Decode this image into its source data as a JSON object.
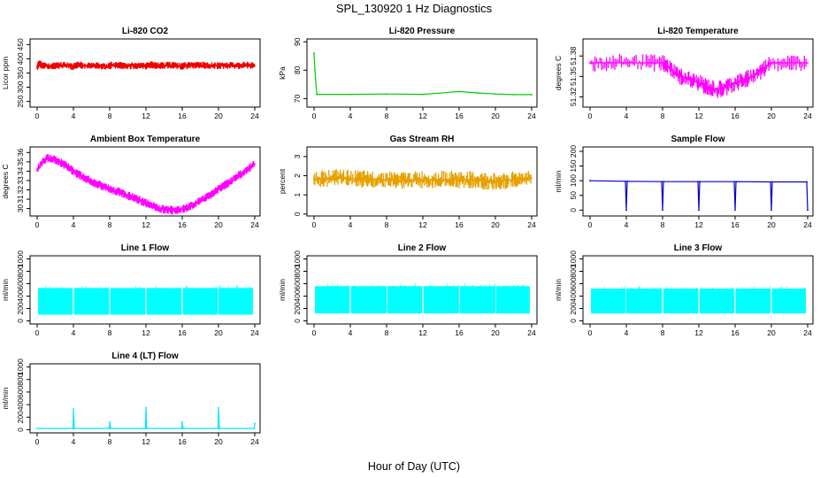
{
  "figure": {
    "title": "SPL_130920  1 Hz Diagnostics",
    "xlabel": "Hour of Day (UTC)"
  },
  "chart_data": [
    {
      "type": "line",
      "title": "Li-820 CO2",
      "ylabel": "Licor ppm",
      "color": "#ee0000",
      "xlim": [
        0,
        24
      ],
      "xticks": [
        0,
        4,
        8,
        12,
        16,
        20,
        24
      ],
      "ylim": [
        230,
        470
      ],
      "yticks": [
        250,
        300,
        350,
        400,
        450
      ],
      "series": [
        {
          "x": [
            0,
            0.2,
            0.5,
            1,
            2,
            3,
            4,
            4.5,
            5,
            6,
            7,
            8,
            8.2,
            9,
            10,
            11,
            12,
            12.5,
            13,
            14,
            15,
            16,
            16.2,
            17,
            18,
            19,
            20,
            21,
            22,
            23,
            24
          ],
          "y": [
            370,
            385,
            378,
            375,
            376,
            378,
            372,
            380,
            377,
            376,
            375,
            374,
            378,
            377,
            375,
            376,
            374,
            380,
            376,
            377,
            378,
            372,
            376,
            377,
            378,
            376,
            375,
            377,
            376,
            378,
            375
          ]
        }
      ]
    },
    {
      "type": "line",
      "title": "Li-820 Pressure",
      "ylabel": "kPa",
      "color": "#00cc00",
      "xlim": [
        0,
        24
      ],
      "xticks": [
        0,
        4,
        8,
        12,
        16,
        20,
        24
      ],
      "ylim": [
        67,
        91
      ],
      "yticks": [
        70,
        80,
        90
      ],
      "series": [
        {
          "x": [
            0,
            0.1,
            0.3,
            4,
            8,
            12,
            16,
            18,
            20,
            22,
            24
          ],
          "y": [
            86,
            80,
            71.5,
            71.5,
            71.6,
            71.5,
            72.5,
            72.0,
            71.6,
            71.4,
            71.4
          ]
        }
      ]
    },
    {
      "type": "line",
      "title": "Li-820 Temperature",
      "ylabel": "degrees C",
      "color": "#ff00ff",
      "xlim": [
        0,
        24
      ],
      "xticks": [
        0,
        4,
        8,
        12,
        16,
        20,
        24
      ],
      "ylim": [
        51.305,
        51.405
      ],
      "yticks": [
        51.32,
        51.35,
        51.38
      ],
      "series": [
        {
          "x": [
            0,
            4,
            8,
            10,
            12,
            14,
            16,
            18,
            20,
            24
          ],
          "y": [
            51.37,
            51.37,
            51.37,
            51.35,
            51.34,
            51.33,
            51.34,
            51.35,
            51.37,
            51.37
          ]
        }
      ]
    },
    {
      "type": "line",
      "title": "Ambient Box Temperature",
      "ylabel": "degrees C",
      "color": "#ff00ff",
      "xlim": [
        0,
        24
      ],
      "xticks": [
        0,
        4,
        8,
        12,
        16,
        20,
        24
      ],
      "ylim": [
        29.2,
        36.6
      ],
      "yticks": [
        30,
        31,
        32,
        33,
        34,
        35,
        36
      ],
      "series": [
        {
          "x": [
            0,
            1,
            2,
            3,
            4,
            5,
            6,
            7,
            8,
            9,
            10,
            11,
            12,
            13,
            14,
            15,
            16,
            17,
            18,
            19,
            20,
            21,
            22,
            23,
            24
          ],
          "y": [
            34.2,
            35.4,
            35.2,
            34.7,
            34.0,
            33.4,
            32.9,
            32.5,
            32.1,
            31.8,
            31.4,
            31.0,
            30.6,
            30.2,
            29.9,
            29.8,
            29.9,
            30.3,
            30.8,
            31.4,
            32.1,
            32.7,
            33.4,
            34.0,
            34.8
          ]
        }
      ]
    },
    {
      "type": "line",
      "title": "Gas Stream RH",
      "ylabel": "percent",
      "color": "#e8a000",
      "xlim": [
        0,
        24
      ],
      "xticks": [
        0,
        4,
        8,
        12,
        16,
        20,
        24
      ],
      "ylim": [
        -0.1,
        3.5
      ],
      "yticks": [
        0,
        1,
        2,
        3
      ],
      "series": [
        {
          "x": [
            0,
            2,
            4,
            6,
            8,
            10,
            12,
            14,
            16,
            18,
            20,
            22,
            24
          ],
          "y": [
            1.8,
            1.9,
            1.85,
            1.8,
            1.8,
            1.75,
            1.8,
            1.8,
            1.8,
            1.75,
            1.7,
            1.8,
            1.85
          ]
        }
      ]
    },
    {
      "type": "line",
      "title": "Sample Flow",
      "ylabel": "ml/min",
      "color": "#0000cc",
      "xlim": [
        0,
        24
      ],
      "xticks": [
        0,
        4,
        8,
        12,
        16,
        20,
        24
      ],
      "ylim": [
        -20,
        215
      ],
      "yticks": [
        0,
        50,
        100,
        150,
        200
      ],
      "series": [
        {
          "x": [
            0,
            3.9,
            4,
            4.1,
            7.9,
            8,
            8.1,
            11.9,
            12,
            12.1,
            15.9,
            16,
            16.1,
            19.9,
            20,
            20.1,
            23.9,
            24
          ],
          "y": [
            100,
            98,
            0,
            98,
            97,
            0,
            97,
            97,
            0,
            97,
            97,
            0,
            97,
            96,
            0,
            96,
            96,
            0
          ]
        }
      ]
    },
    {
      "type": "area",
      "title": "Line 1 Flow",
      "ylabel": "ml/min",
      "color": "#00ffff",
      "xlim": [
        0,
        24
      ],
      "xticks": [
        0,
        4,
        8,
        12,
        16,
        20,
        24
      ],
      "ylim": [
        -50,
        1050
      ],
      "yticks": [
        0,
        200,
        400,
        600,
        800,
        1000
      ],
      "band": {
        "low": 100,
        "high": 530
      }
    },
    {
      "type": "area",
      "title": "Line 2 Flow",
      "ylabel": "ml/min",
      "color": "#00ffff",
      "xlim": [
        0,
        24
      ],
      "xticks": [
        0,
        4,
        8,
        12,
        16,
        20,
        24
      ],
      "ylim": [
        -50,
        1050
      ],
      "yticks": [
        0,
        200,
        400,
        600,
        800,
        1000
      ],
      "band": {
        "low": 120,
        "high": 560
      }
    },
    {
      "type": "area",
      "title": "Line 3 Flow",
      "ylabel": "ml/min",
      "color": "#00ffff",
      "xlim": [
        0,
        24
      ],
      "xticks": [
        0,
        4,
        8,
        12,
        16,
        20,
        24
      ],
      "ylim": [
        -50,
        1050
      ],
      "yticks": [
        0,
        200,
        400,
        600,
        800,
        1000
      ],
      "band": {
        "low": 120,
        "high": 520
      }
    },
    {
      "type": "line",
      "title": "Line 4 (LT) Flow",
      "ylabel": "ml/min",
      "color": "#00e5ff",
      "xlim": [
        0,
        24
      ],
      "xticks": [
        0,
        4,
        8,
        12,
        16,
        20,
        24
      ],
      "ylim": [
        -50,
        1050
      ],
      "yticks": [
        0,
        200,
        400,
        600,
        800,
        1000
      ],
      "series": [
        {
          "x": [
            0,
            3.95,
            4,
            4.1,
            7.95,
            8,
            8.1,
            11.95,
            12,
            12.1,
            15.95,
            16,
            16.1,
            19.95,
            20,
            20.1,
            23.95,
            24
          ],
          "y": [
            20,
            20,
            330,
            20,
            20,
            120,
            20,
            20,
            350,
            20,
            20,
            120,
            20,
            20,
            350,
            20,
            20,
            100
          ]
        }
      ]
    }
  ]
}
